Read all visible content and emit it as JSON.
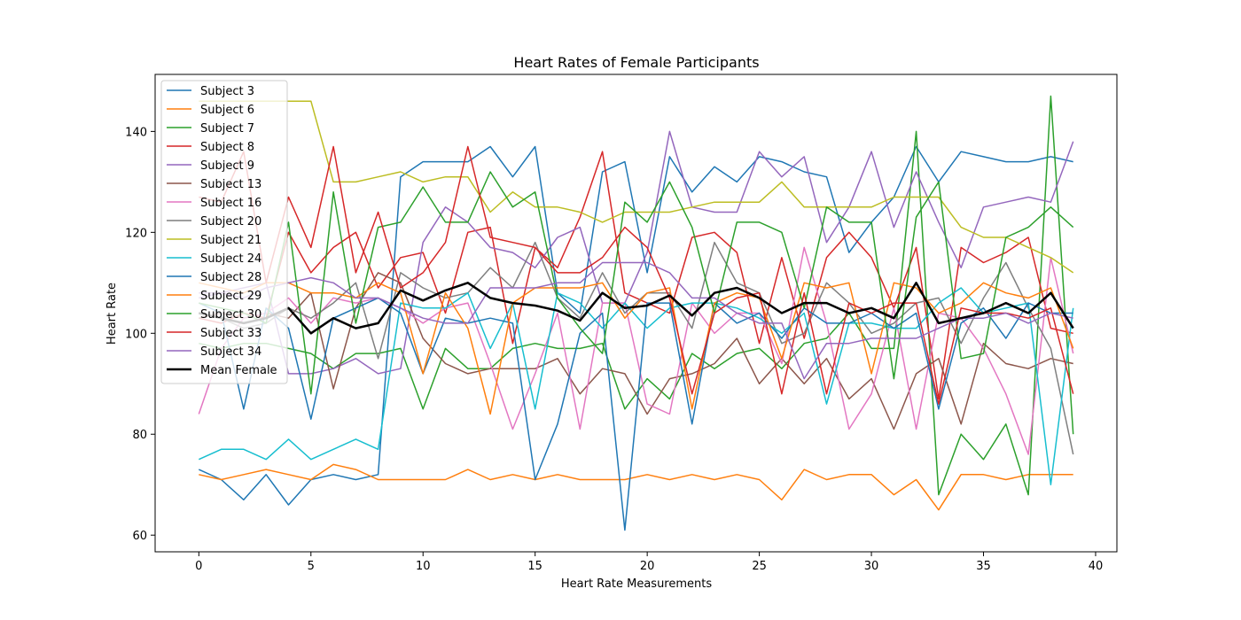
{
  "chart_data": {
    "type": "line",
    "title": "Heart Rates of Female Participants",
    "xlabel": "Heart Rate Measurements",
    "ylabel": "Heart Rate",
    "xlim": [
      -1.95,
      40.95
    ],
    "ylim": [
      56.7,
      151.3
    ],
    "xticks": [
      0,
      5,
      10,
      15,
      20,
      25,
      30,
      35,
      40
    ],
    "yticks": [
      60,
      80,
      100,
      120,
      140
    ],
    "grid": false,
    "legend_position": "top-left",
    "x": [
      0,
      1,
      2,
      3,
      4,
      5,
      6,
      7,
      8,
      9,
      10,
      11,
      12,
      13,
      14,
      15,
      16,
      17,
      18,
      19,
      20,
      21,
      22,
      23,
      24,
      25,
      26,
      27,
      28,
      29,
      30,
      31,
      32,
      33,
      34,
      35,
      36,
      37,
      38,
      39
    ],
    "series": [
      {
        "name": "Subject 3",
        "color": "#1f77b4",
        "width": 1.5,
        "values": [
          73,
          71,
          67,
          72,
          66,
          71,
          72,
          71,
          72,
          131,
          134,
          134,
          134,
          137,
          131,
          137,
          108,
          104,
          132,
          134,
          112,
          135,
          128,
          133,
          130,
          135,
          134,
          132,
          131,
          116,
          122,
          127,
          137,
          130,
          136,
          135,
          134,
          134,
          135,
          134
        ]
      },
      {
        "name": "Subject 6",
        "color": "#ff7f0e",
        "width": 1.5,
        "values": [
          72,
          71,
          72,
          73,
          72,
          71,
          74,
          73,
          71,
          71,
          71,
          71,
          73,
          71,
          72,
          71,
          72,
          71,
          71,
          71,
          72,
          71,
          72,
          71,
          72,
          71,
          67,
          73,
          71,
          72,
          72,
          68,
          71,
          65,
          72,
          72,
          71,
          72,
          72,
          72
        ]
      },
      {
        "name": "Subject 7",
        "color": "#2ca02c",
        "width": 1.5,
        "values": [
          98,
          97,
          98,
          98,
          97,
          96,
          93,
          96,
          96,
          97,
          85,
          97,
          93,
          93,
          97,
          98,
          97,
          97,
          98,
          85,
          91,
          87,
          96,
          93,
          96,
          97,
          93,
          98,
          99,
          104,
          97,
          97,
          140,
          68,
          80,
          75,
          82,
          68,
          147,
          80
        ]
      },
      {
        "name": "Subject 8",
        "color": "#d62728",
        "width": 1.5,
        "values": [
          103,
          102,
          104,
          103,
          120,
          112,
          117,
          120,
          109,
          115,
          116,
          104,
          120,
          121,
          98,
          117,
          113,
          123,
          136,
          108,
          106,
          104,
          119,
          120,
          116,
          98,
          115,
          99,
          115,
          120,
          115,
          105,
          117,
          87,
          117,
          114,
          116,
          119,
          101,
          100
        ]
      },
      {
        "name": "Subject 9",
        "color": "#9467bd",
        "width": 1.5,
        "values": [
          107,
          108,
          109,
          110,
          92,
          92,
          93,
          95,
          92,
          93,
          118,
          125,
          122,
          117,
          116,
          113,
          119,
          121,
          106,
          106,
          116,
          140,
          125,
          124,
          124,
          136,
          131,
          135,
          118,
          125,
          136,
          121,
          132,
          122,
          113,
          125,
          126,
          127,
          126,
          138
        ]
      },
      {
        "name": "Subject 13",
        "color": "#8c564b",
        "width": 1.5,
        "values": [
          103,
          104,
          103,
          104,
          103,
          108,
          89,
          105,
          112,
          110,
          99,
          94,
          92,
          93,
          93,
          93,
          95,
          88,
          93,
          92,
          84,
          91,
          92,
          94,
          99,
          90,
          95,
          90,
          95,
          87,
          91,
          81,
          92,
          95,
          82,
          98,
          94,
          93,
          95,
          94
        ]
      },
      {
        "name": "Subject 16",
        "color": "#e377c2",
        "width": 1.5,
        "values": [
          84,
          97,
          103,
          104,
          107,
          102,
          107,
          106,
          107,
          105,
          102,
          105,
          106,
          94,
          81,
          92,
          104,
          81,
          106,
          106,
          86,
          84,
          106,
          100,
          104,
          104,
          94,
          117,
          102,
          81,
          88,
          105,
          81,
          104,
          103,
          97,
          88,
          76,
          115,
          96
        ]
      },
      {
        "name": "Subject 20",
        "color": "#7f7f7f",
        "width": 1.5,
        "values": [
          104,
          103,
          101,
          102,
          105,
          103,
          106,
          110,
          95,
          112,
          109,
          107,
          108,
          113,
          109,
          118,
          107,
          103,
          112,
          104,
          108,
          108,
          101,
          118,
          110,
          108,
          98,
          100,
          110,
          106,
          100,
          102,
          106,
          107,
          98,
          107,
          114,
          105,
          97,
          76
        ]
      },
      {
        "name": "Subject 21",
        "color": "#bcbd22",
        "width": 1.5,
        "values": [
          146,
          146,
          146,
          146,
          146,
          146,
          130,
          130,
          131,
          132,
          130,
          131,
          131,
          124,
          128,
          125,
          125,
          124,
          122,
          124,
          124,
          124,
          125,
          126,
          126,
          126,
          130,
          125,
          125,
          125,
          125,
          127,
          127,
          127,
          121,
          119,
          119,
          117,
          115,
          112
        ]
      },
      {
        "name": "Subject 24",
        "color": "#17becf",
        "width": 1.5,
        "values": [
          75,
          77,
          77,
          75,
          79,
          75,
          77,
          79,
          77,
          106,
          105,
          105,
          108,
          97,
          106,
          85,
          108,
          106,
          101,
          106,
          101,
          105,
          106,
          106,
          105,
          103,
          100,
          104,
          86,
          102,
          102,
          101,
          101,
          106,
          109,
          104,
          105,
          106,
          70,
          105
        ]
      },
      {
        "name": "Subject 28",
        "color": "#1f77b4",
        "width": 1.5,
        "values": [
          106,
          104,
          85,
          105,
          101,
          83,
          103,
          105,
          107,
          104,
          92,
          103,
          102,
          103,
          102,
          71,
          82,
          100,
          104,
          61,
          106,
          106,
          82,
          106,
          102,
          104,
          99,
          105,
          102,
          102,
          104,
          101,
          104,
          85,
          102,
          105,
          99,
          106,
          104,
          104
        ]
      },
      {
        "name": "Subject 29",
        "color": "#ff7f0e",
        "width": 1.5,
        "values": [
          110,
          109,
          108,
          110,
          110,
          108,
          108,
          107,
          110,
          108,
          92,
          108,
          101,
          84,
          106,
          109,
          109,
          109,
          110,
          103,
          108,
          109,
          85,
          106,
          108,
          107,
          95,
          110,
          109,
          110,
          92,
          110,
          109,
          104,
          106,
          110,
          108,
          107,
          109,
          97
        ]
      },
      {
        "name": "Subject 30",
        "color": "#2ca02c",
        "width": 1.5,
        "values": [
          106,
          105,
          104,
          102,
          122,
          88,
          128,
          102,
          121,
          122,
          129,
          122,
          122,
          132,
          125,
          128,
          107,
          101,
          96,
          126,
          122,
          130,
          121,
          104,
          122,
          122,
          120,
          105,
          125,
          122,
          122,
          91,
          123,
          130,
          95,
          96,
          119,
          121,
          125,
          121
        ]
      },
      {
        "name": "Subject 33",
        "color": "#d62728",
        "width": 1.5,
        "values": [
          127,
          126,
          136,
          110,
          127,
          117,
          137,
          112,
          124,
          109,
          112,
          118,
          137,
          119,
          118,
          117,
          112,
          112,
          115,
          121,
          117,
          107,
          88,
          104,
          107,
          108,
          88,
          108,
          88,
          106,
          104,
          106,
          106,
          86,
          105,
          104,
          104,
          103,
          105,
          88
        ]
      },
      {
        "name": "Subject 34",
        "color": "#9467bd",
        "width": 1.5,
        "values": [
          108,
          108,
          107,
          109,
          110,
          111,
          110,
          107,
          107,
          105,
          103,
          102,
          102,
          109,
          109,
          109,
          110,
          110,
          114,
          114,
          114,
          112,
          107,
          107,
          104,
          102,
          102,
          91,
          98,
          98,
          99,
          99,
          99,
          101,
          103,
          103,
          104,
          102,
          104,
          103
        ]
      },
      {
        "name": "Mean Female",
        "color": "#000000",
        "width": 2.5,
        "values": [
          104,
          103,
          102,
          103,
          105,
          100,
          103,
          101,
          102,
          108.5,
          106.5,
          108.5,
          110,
          107,
          106,
          105.5,
          104.5,
          102.5,
          108,
          105,
          105.5,
          107.5,
          103.5,
          108,
          109,
          107,
          104,
          106,
          106,
          104,
          105,
          103,
          110,
          102,
          103,
          104,
          106,
          104,
          108,
          101
        ]
      }
    ]
  }
}
